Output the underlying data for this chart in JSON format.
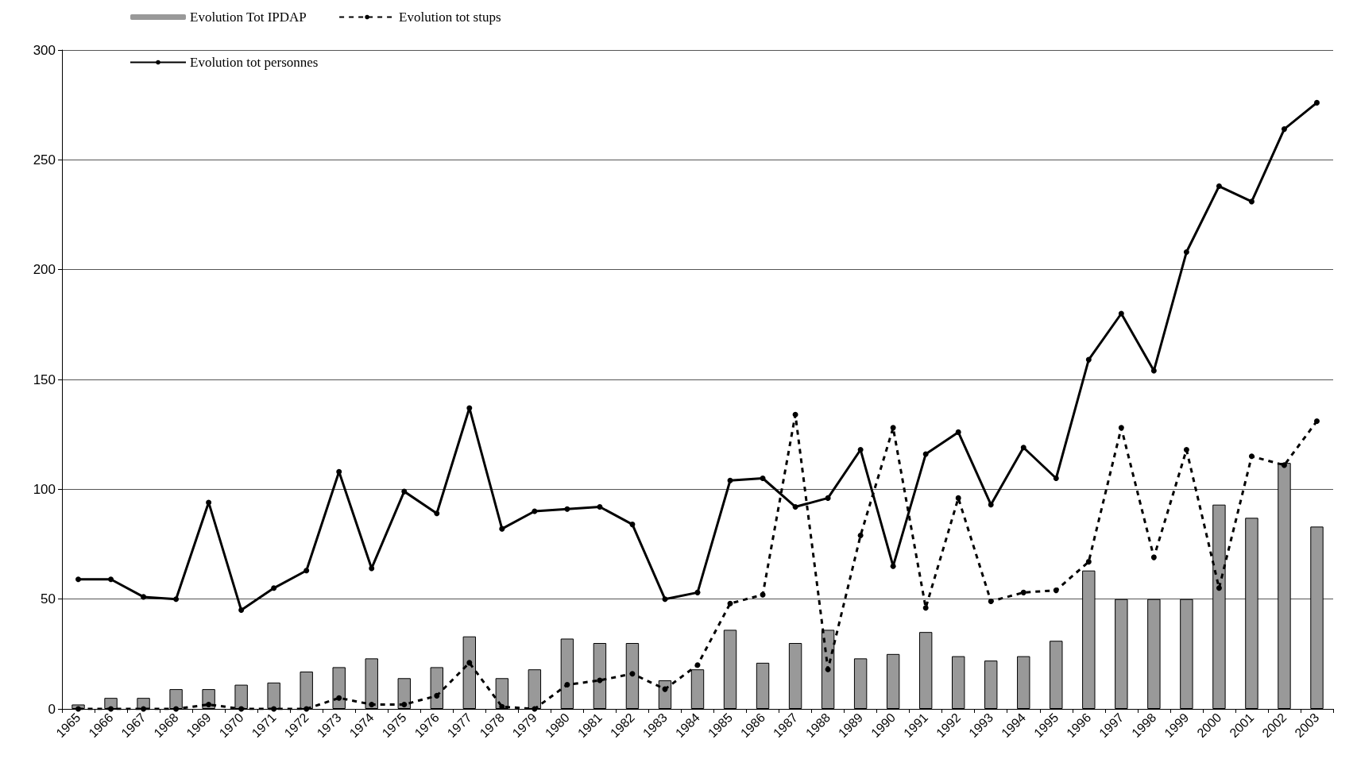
{
  "chart_data": {
    "type": "bar",
    "categories": [
      "1965",
      "1966",
      "1967",
      "1968",
      "1969",
      "1970",
      "1971",
      "1972",
      "1973",
      "1974",
      "1975",
      "1976",
      "1977",
      "1978",
      "1979",
      "1980",
      "1981",
      "1982",
      "1983",
      "1984",
      "1985",
      "1986",
      "1987",
      "1988",
      "1989",
      "1990",
      "1991",
      "1992",
      "1993",
      "1994",
      "1995",
      "1996",
      "1997",
      "1998",
      "1999",
      "2000",
      "2001",
      "2002",
      "2003"
    ],
    "series": [
      {
        "name": "Evolution Tot IPDAP",
        "color": "#999999",
        "values": [
          2,
          5,
          5,
          9,
          9,
          11,
          12,
          17,
          19,
          23,
          14,
          19,
          33,
          14,
          18,
          32,
          30,
          30,
          13,
          18,
          36,
          21,
          30,
          36,
          23,
          25,
          35,
          24,
          22,
          24,
          31,
          63,
          50,
          50,
          50,
          93,
          87,
          112,
          83
        ]
      },
      {
        "name": "Evolution tot stups",
        "type": "line",
        "line_style": "dashed",
        "color": "#000000",
        "values": [
          0,
          0,
          0,
          0,
          2,
          0,
          0,
          0,
          5,
          2,
          2,
          6,
          21,
          1,
          0,
          11,
          13,
          16,
          9,
          20,
          48,
          52,
          134,
          18,
          79,
          128,
          46,
          96,
          49,
          53,
          54,
          67,
          128,
          69,
          118,
          55,
          115,
          111,
          131
        ]
      },
      {
        "name": "Evolution tot personnes",
        "type": "line",
        "line_style": "solid",
        "color": "#000000",
        "values": [
          59,
          59,
          51,
          50,
          94,
          45,
          55,
          63,
          108,
          64,
          99,
          89,
          137,
          82,
          90,
          91,
          92,
          84,
          50,
          53,
          104,
          105,
          92,
          96,
          118,
          65,
          116,
          126,
          93,
          119,
          105,
          159,
          180,
          154,
          208,
          238,
          231,
          264,
          276
        ]
      }
    ],
    "marker": "circle",
    "ylim": [
      0,
      300
    ],
    "yticks": [
      0,
      50,
      100,
      150,
      200,
      250,
      300
    ],
    "grid": "y",
    "legend": "top left"
  }
}
